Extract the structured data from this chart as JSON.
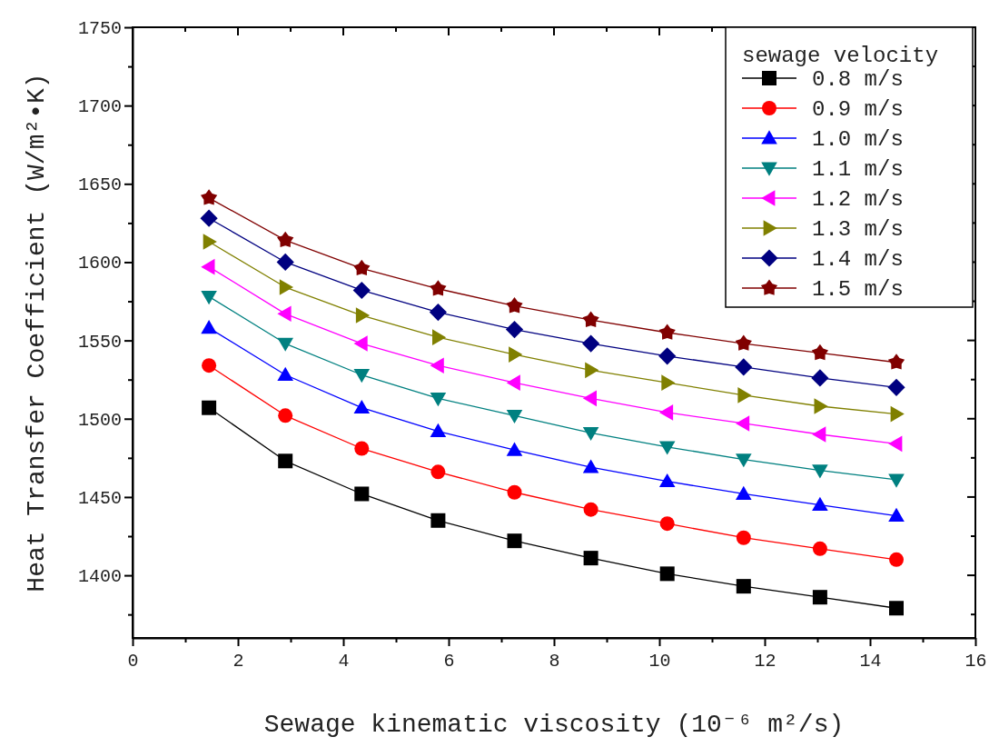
{
  "chart_data": {
    "type": "line",
    "xlabel": "Sewage kinematic viscosity (10⁻⁶ m²/s)",
    "ylabel": "Heat Transfer Coefficient (W/m²•K)",
    "legend_title": "sewage velocity",
    "legend": "top right",
    "grid": false,
    "line_style": "solid",
    "x": [
      1.45,
      2.9,
      4.35,
      5.8,
      7.25,
      8.7,
      10.15,
      11.6,
      13.05,
      14.5
    ],
    "xlim": [
      0,
      16
    ],
    "xticks": [
      0,
      {
        "value": 1,
        "label": null
      },
      2,
      {
        "value": 3,
        "label": null
      },
      4,
      {
        "value": 5,
        "label": null
      },
      6,
      {
        "value": 7,
        "label": null
      },
      8,
      {
        "value": 9,
        "label": null
      },
      10,
      {
        "value": 11,
        "label": null
      },
      12,
      {
        "value": 13,
        "label": null
      },
      14,
      {
        "value": 15,
        "label": null
      },
      16
    ],
    "ylim": [
      1360,
      1750
    ],
    "yticks": [
      {
        "value": 1375,
        "label": null
      },
      1400,
      {
        "value": 1425,
        "label": null
      },
      1450,
      {
        "value": 1475,
        "label": null
      },
      1500,
      {
        "value": 1525,
        "label": null
      },
      1550,
      {
        "value": 1575,
        "label": null
      },
      1600,
      {
        "value": 1625,
        "label": null
      },
      1650,
      {
        "value": 1675,
        "label": null
      },
      1700,
      {
        "value": 1725,
        "label": null
      },
      1750
    ],
    "series": [
      {
        "name": "0.8 m/s",
        "color": "#000000",
        "marker": "square",
        "values": [
          1507,
          1473,
          1452,
          1435,
          1422,
          1411,
          1401,
          1393,
          1386,
          1379
        ]
      },
      {
        "name": "0.9 m/s",
        "color": "#ff0000",
        "marker": "circle",
        "values": [
          1534,
          1502,
          1481,
          1466,
          1453,
          1442,
          1433,
          1424,
          1417,
          1410
        ]
      },
      {
        "name": "1.0 m/s",
        "color": "#0000ff",
        "marker": "triangle",
        "values": [
          1558,
          1528,
          1507,
          1492,
          1480,
          1469,
          1460,
          1452,
          1445,
          1438
        ]
      },
      {
        "name": "1.1 m/s",
        "color": "#008080",
        "marker": "triangle-down",
        "values": [
          1578,
          1548,
          1528,
          1513,
          1502,
          1491,
          1482,
          1474,
          1467,
          1461
        ]
      },
      {
        "name": "1.2 m/s",
        "color": "#ff00ff",
        "marker": "triangle-left",
        "values": [
          1597,
          1567,
          1548,
          1534,
          1523,
          1513,
          1504,
          1497,
          1490,
          1484
        ]
      },
      {
        "name": "1.3 m/s",
        "color": "#808000",
        "marker": "triangle-right",
        "values": [
          1613,
          1584,
          1566,
          1552,
          1541,
          1531,
          1523,
          1515,
          1508,
          1503
        ]
      },
      {
        "name": "1.4 m/s",
        "color": "#000080",
        "marker": "diamond",
        "values": [
          1628,
          1600,
          1582,
          1568,
          1557,
          1548,
          1540,
          1533,
          1526,
          1520
        ]
      },
      {
        "name": "1.5 m/s",
        "color": "#800000",
        "marker": "star",
        "values": [
          1641,
          1614,
          1596,
          1583,
          1572,
          1563,
          1555,
          1548,
          1542,
          1536
        ]
      }
    ]
  }
}
